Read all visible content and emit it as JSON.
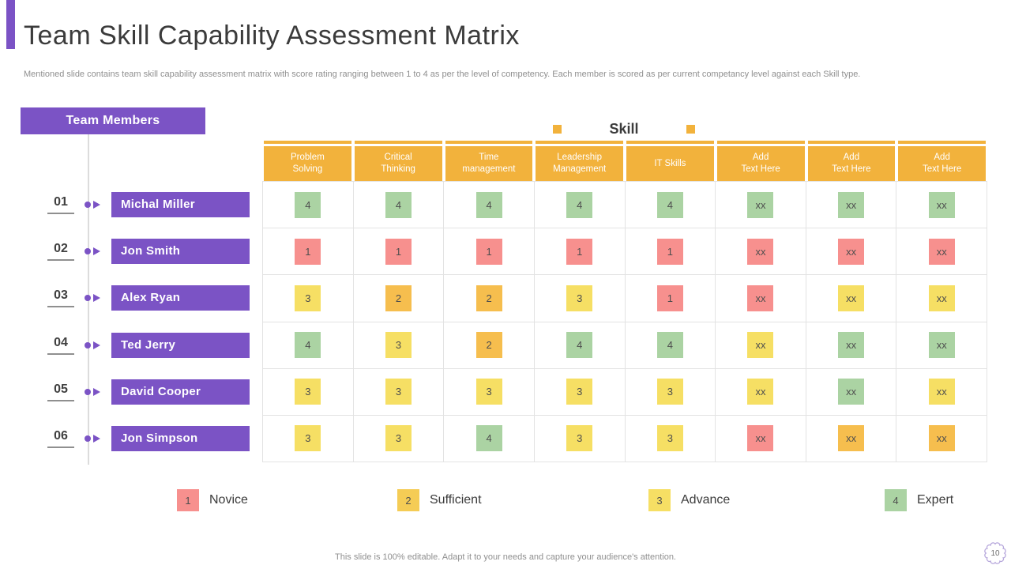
{
  "slide": {
    "title": "Team Skill Capability Assessment Matrix",
    "subtitle": "Mentioned slide contains team skill capability assessment matrix with score rating ranging between 1 to 4 as per the level of competency. Each member is scored as per current competancy level against each Skill type.",
    "footer": "This slide is 100% editable. Adapt it to your needs and capture your audience's attention.",
    "page_number": "10"
  },
  "colors": {
    "purple": "#7B53C5",
    "header_orange": "#F2B23C",
    "grid_line": "#E3E3E3",
    "level_1": "#F7908E",
    "level_2": "#F6BE4E",
    "level_3": "#F6DF64",
    "level_4": "#ABD3A3",
    "legend_gold": "#F5CC55"
  },
  "matrix": {
    "members_header": "Team Members",
    "skill_header": "Skill",
    "columns": [
      "Problem\nSolving",
      "Critical\nThinking",
      "Time\nmanagement",
      "Leadership\nManagement",
      "IT Skills",
      "Add\nText Here",
      "Add\nText Here",
      "Add\nText Here"
    ],
    "rows": [
      {
        "num": "01",
        "name": "Michal Miller",
        "cells": [
          {
            "v": "4",
            "lv": 4
          },
          {
            "v": "4",
            "lv": 4
          },
          {
            "v": "4",
            "lv": 4
          },
          {
            "v": "4",
            "lv": 4
          },
          {
            "v": "4",
            "lv": 4
          },
          {
            "v": "xx",
            "lv": 4
          },
          {
            "v": "xx",
            "lv": 4
          },
          {
            "v": "xx",
            "lv": 4
          }
        ]
      },
      {
        "num": "02",
        "name": "Jon Smith",
        "cells": [
          {
            "v": "1",
            "lv": 1
          },
          {
            "v": "1",
            "lv": 1
          },
          {
            "v": "1",
            "lv": 1
          },
          {
            "v": "1",
            "lv": 1
          },
          {
            "v": "1",
            "lv": 1
          },
          {
            "v": "xx",
            "lv": 1
          },
          {
            "v": "xx",
            "lv": 1
          },
          {
            "v": "xx",
            "lv": 1
          }
        ]
      },
      {
        "num": "03",
        "name": "Alex Ryan",
        "cells": [
          {
            "v": "3",
            "lv": 3
          },
          {
            "v": "2",
            "lv": 2
          },
          {
            "v": "2",
            "lv": 2
          },
          {
            "v": "3",
            "lv": 3
          },
          {
            "v": "1",
            "lv": 1
          },
          {
            "v": "xx",
            "lv": 1
          },
          {
            "v": "xx",
            "lv": 3
          },
          {
            "v": "xx",
            "lv": 3
          }
        ]
      },
      {
        "num": "04",
        "name": "Ted Jerry",
        "cells": [
          {
            "v": "4",
            "lv": 4
          },
          {
            "v": "3",
            "lv": 3
          },
          {
            "v": "2",
            "lv": 2
          },
          {
            "v": "4",
            "lv": 4
          },
          {
            "v": "4",
            "lv": 4
          },
          {
            "v": "xx",
            "lv": 3
          },
          {
            "v": "xx",
            "lv": 4
          },
          {
            "v": "xx",
            "lv": 4
          }
        ]
      },
      {
        "num": "05",
        "name": "David Cooper",
        "cells": [
          {
            "v": "3",
            "lv": 3
          },
          {
            "v": "3",
            "lv": 3
          },
          {
            "v": "3",
            "lv": 3
          },
          {
            "v": "3",
            "lv": 3
          },
          {
            "v": "3",
            "lv": 3
          },
          {
            "v": "xx",
            "lv": 3
          },
          {
            "v": "xx",
            "lv": 4
          },
          {
            "v": "xx",
            "lv": 3
          }
        ]
      },
      {
        "num": "06",
        "name": "Jon Simpson",
        "cells": [
          {
            "v": "3",
            "lv": 3
          },
          {
            "v": "3",
            "lv": 3
          },
          {
            "v": "4",
            "lv": 4
          },
          {
            "v": "3",
            "lv": 3
          },
          {
            "v": "3",
            "lv": 3
          },
          {
            "v": "xx",
            "lv": 1
          },
          {
            "v": "xx",
            "lv": 2
          },
          {
            "v": "xx",
            "lv": 2
          }
        ]
      }
    ]
  },
  "legend": {
    "items": [
      {
        "score": "1",
        "label": "Novice",
        "color_key": "level_1"
      },
      {
        "score": "2",
        "label": "Sufficient",
        "color_key": "legend_gold"
      },
      {
        "score": "3",
        "label": "Advance",
        "color_key": "level_3"
      },
      {
        "score": "4",
        "label": "Expert",
        "color_key": "level_4"
      }
    ]
  }
}
